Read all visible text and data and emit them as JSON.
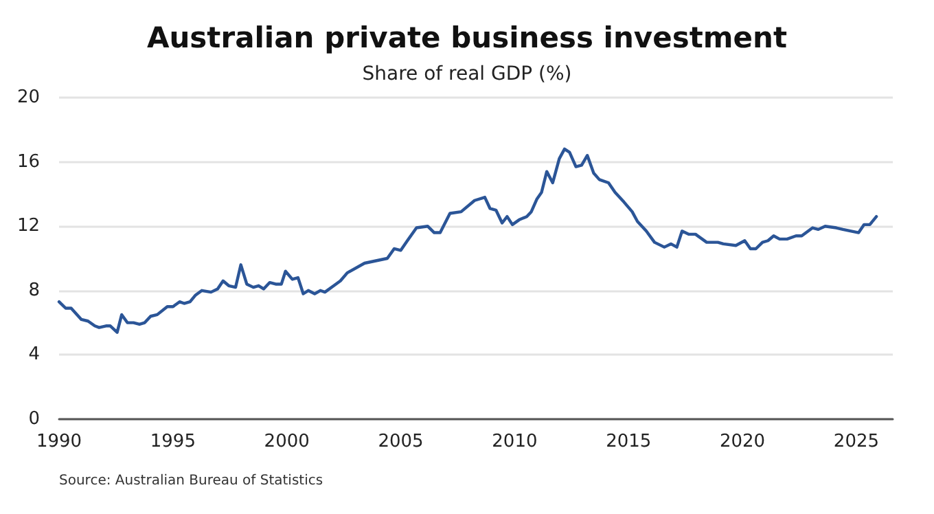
{
  "chart_data": {
    "type": "line",
    "title": "Australian private business investment",
    "subtitle": "Share of real GDP (%)",
    "annotations": [
      "Source: Australian Bureau of Statistics"
    ],
    "x": [
      1990.0,
      1990.29,
      1990.53,
      1990.98,
      1991.27,
      1991.57,
      1991.76,
      1992.06,
      1992.25,
      1992.55,
      1992.75,
      1993.0,
      1993.27,
      1993.53,
      1993.76,
      1994.02,
      1994.31,
      1994.75,
      1995.0,
      1995.29,
      1995.49,
      1995.75,
      1995.98,
      1996.27,
      1996.67,
      1996.96,
      1997.2,
      1997.45,
      1997.75,
      1997.98,
      1998.24,
      1998.53,
      1998.76,
      1998.98,
      1999.25,
      1999.51,
      1999.76,
      1999.94,
      2000.24,
      2000.49,
      2000.72,
      2000.94,
      2001.22,
      2001.47,
      2001.67,
      2002.06,
      2002.35,
      2002.65,
      2003.41,
      2004.41,
      2004.71,
      2005.0,
      2005.29,
      2005.69,
      2006.18,
      2006.47,
      2006.73,
      2007.16,
      2007.65,
      2008.24,
      2008.69,
      2008.92,
      2009.18,
      2009.45,
      2009.67,
      2009.9,
      2010.2,
      2010.53,
      2010.73,
      2010.98,
      2011.18,
      2011.41,
      2011.67,
      2011.96,
      2012.19,
      2012.41,
      2012.69,
      2012.94,
      2013.19,
      2013.47,
      2013.72,
      2014.12,
      2014.41,
      2014.8,
      2015.16,
      2015.39,
      2015.78,
      2016.14,
      2016.57,
      2016.86,
      2017.12,
      2017.35,
      2017.65,
      2017.94,
      2018.43,
      2018.92,
      2019.16,
      2019.71,
      2020.1,
      2020.35,
      2020.59,
      2020.88,
      2021.12,
      2021.37,
      2021.63,
      2021.96,
      2022.35,
      2022.6,
      2023.08,
      2023.33,
      2023.63,
      2024.12,
      2024.41,
      2025.1,
      2025.34,
      2025.59,
      2025.88
    ],
    "series": [
      {
        "color": "#2b5597",
        "values": [
          7.3,
          6.9,
          6.9,
          6.2,
          6.1,
          5.8,
          5.7,
          5.8,
          5.8,
          5.4,
          6.5,
          6.0,
          6.0,
          5.9,
          6.0,
          6.4,
          6.5,
          7.0,
          7.0,
          7.3,
          7.2,
          7.3,
          7.7,
          8.0,
          7.9,
          8.1,
          8.6,
          8.3,
          8.2,
          9.6,
          8.4,
          8.2,
          8.3,
          8.1,
          8.5,
          8.4,
          8.4,
          9.2,
          8.7,
          8.8,
          7.8,
          8.0,
          7.8,
          8.0,
          7.9,
          8.3,
          8.6,
          9.1,
          9.7,
          10.0,
          10.6,
          10.5,
          11.1,
          11.9,
          12.0,
          11.6,
          11.6,
          12.8,
          12.9,
          13.6,
          13.8,
          13.1,
          13.0,
          12.2,
          12.6,
          12.1,
          12.4,
          12.6,
          12.9,
          13.7,
          14.1,
          15.4,
          14.7,
          16.2,
          16.8,
          16.6,
          15.7,
          15.8,
          16.4,
          15.3,
          14.9,
          14.7,
          14.1,
          13.5,
          12.9,
          12.3,
          11.7,
          11.0,
          10.7,
          10.9,
          10.7,
          11.7,
          11.5,
          11.5,
          11.0,
          11.0,
          10.9,
          10.8,
          11.1,
          10.6,
          10.6,
          11.0,
          11.1,
          11.4,
          11.2,
          11.2,
          11.4,
          11.4,
          11.9,
          11.8,
          12.0,
          11.9,
          11.8,
          11.6,
          12.1,
          12.1,
          12.6
        ]
      }
    ],
    "xlim": [
      1990,
      2026.6
    ],
    "xticks": [
      1990,
      1995,
      2000,
      2005,
      2010,
      2015,
      2020,
      2025
    ],
    "ylim": [
      0,
      20
    ],
    "yticks": [
      0,
      4,
      8,
      12,
      16,
      20
    ],
    "grid": "y",
    "marker": "none",
    "line_style": "solid"
  }
}
